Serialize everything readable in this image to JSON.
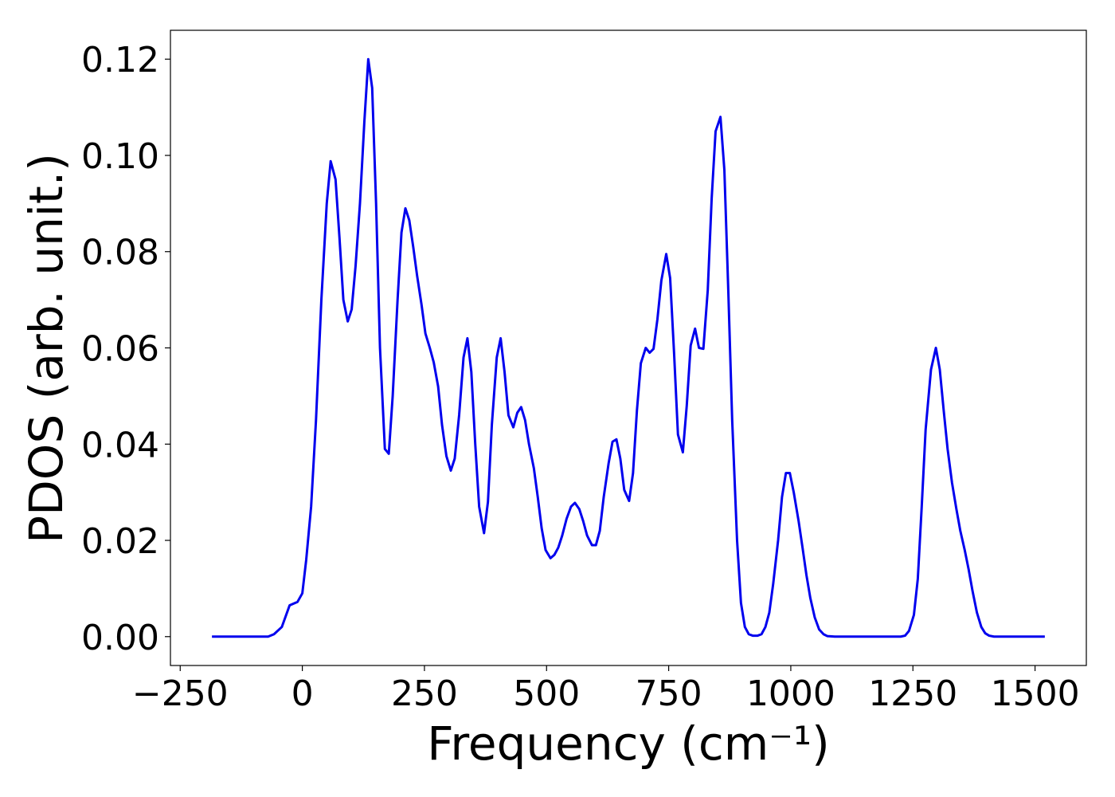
{
  "chart_data": {
    "type": "line",
    "xlabel": "Frequency (cm⁻¹)",
    "ylabel": "PDOS (arb. unit.)",
    "xlim": [
      -270,
      1605
    ],
    "ylim": [
      -0.006,
      0.126
    ],
    "xticks": [
      {
        "value": -250,
        "label": "−250"
      },
      0,
      250,
      500,
      750,
      1000,
      1250,
      1500
    ],
    "yticks": [
      {
        "value": 0,
        "label": "0.00"
      },
      {
        "value": 0.02,
        "label": "0.02"
      },
      {
        "value": 0.04,
        "label": "0.04"
      },
      {
        "value": 0.06,
        "label": "0.06"
      },
      {
        "value": 0.08,
        "label": "0.08"
      },
      {
        "value": 0.1,
        "label": "0.10"
      },
      {
        "value": 0.12,
        "label": "0.12"
      }
    ],
    "series": [
      {
        "color": "#0000ee",
        "x": [
          -185,
          -150,
          -100,
          -70,
          -58,
          -42,
          -26,
          -10,
          0,
          8,
          18,
          28,
          39,
          50,
          58,
          68,
          76,
          84,
          93,
          101,
          109,
          118,
          127,
          135,
          143,
          151,
          159,
          169,
          177,
          185,
          195,
          203,
          211,
          219,
          227,
          235,
          244,
          252,
          261,
          269,
          278,
          286,
          295,
          304,
          312,
          321,
          330,
          338,
          346,
          354,
          362,
          372,
          380,
          388,
          398,
          406,
          414,
          422,
          432,
          440,
          448,
          456,
          464,
          474,
          482,
          490,
          498,
          508,
          516,
          524,
          532,
          541,
          550,
          558,
          567,
          575,
          583,
          593,
          601,
          609,
          617,
          627,
          635,
          643,
          651,
          659,
          669,
          677,
          685,
          693,
          703,
          711,
          719,
          727,
          735,
          745,
          753,
          761,
          769,
          779,
          787,
          795,
          804,
          812,
          821,
          830,
          838,
          846,
          856,
          864,
          872,
          880,
          890,
          898,
          906,
          914,
          922,
          932,
          940,
          948,
          956,
          964,
          974,
          982,
          990,
          998,
          1006,
          1016,
          1024,
          1032,
          1040,
          1049,
          1058,
          1067,
          1075,
          1090,
          1150,
          1200,
          1225,
          1234,
          1242,
          1252,
          1260,
          1268,
          1276,
          1287,
          1297,
          1305,
          1313,
          1321,
          1330,
          1339,
          1347,
          1356,
          1364,
          1372,
          1381,
          1390,
          1398,
          1406,
          1416,
          1450,
          1520
        ],
        "values": [
          0,
          0,
          0,
          0,
          0.0005,
          0.002,
          0.0065,
          0.0072,
          0.009,
          0.016,
          0.027,
          0.045,
          0.07,
          0.09,
          0.0988,
          0.095,
          0.083,
          0.07,
          0.0655,
          0.068,
          0.077,
          0.09,
          0.107,
          0.12,
          0.114,
          0.09,
          0.06,
          0.039,
          0.038,
          0.05,
          0.07,
          0.084,
          0.089,
          0.0865,
          0.081,
          0.075,
          0.069,
          0.063,
          0.06,
          0.057,
          0.052,
          0.044,
          0.0375,
          0.0345,
          0.037,
          0.046,
          0.058,
          0.062,
          0.055,
          0.04,
          0.027,
          0.0215,
          0.028,
          0.044,
          0.058,
          0.062,
          0.055,
          0.046,
          0.0435,
          0.0465,
          0.0477,
          0.045,
          0.04,
          0.035,
          0.029,
          0.0225,
          0.018,
          0.0163,
          0.017,
          0.0185,
          0.021,
          0.0245,
          0.027,
          0.0278,
          0.0265,
          0.024,
          0.021,
          0.019,
          0.019,
          0.022,
          0.029,
          0.036,
          0.0405,
          0.041,
          0.037,
          0.0305,
          0.0282,
          0.034,
          0.047,
          0.0568,
          0.06,
          0.059,
          0.0598,
          0.066,
          0.074,
          0.0795,
          0.0745,
          0.059,
          0.042,
          0.0383,
          0.048,
          0.0605,
          0.064,
          0.06,
          0.0598,
          0.072,
          0.091,
          0.105,
          0.108,
          0.097,
          0.072,
          0.045,
          0.02,
          0.007,
          0.002,
          0.0005,
          0.0002,
          0.0002,
          0.0005,
          0.002,
          0.005,
          0.011,
          0.02,
          0.029,
          0.034,
          0.034,
          0.03,
          0.024,
          0.0185,
          0.0128,
          0.008,
          0.004,
          0.0015,
          0.0005,
          0.0001,
          0,
          0,
          0,
          0,
          0.0002,
          0.0012,
          0.0045,
          0.012,
          0.027,
          0.043,
          0.0555,
          0.06,
          0.0555,
          0.047,
          0.039,
          0.032,
          0.0265,
          0.022,
          0.018,
          0.014,
          0.0095,
          0.005,
          0.002,
          0.0007,
          0.0002,
          0,
          0,
          0
        ]
      }
    ]
  }
}
